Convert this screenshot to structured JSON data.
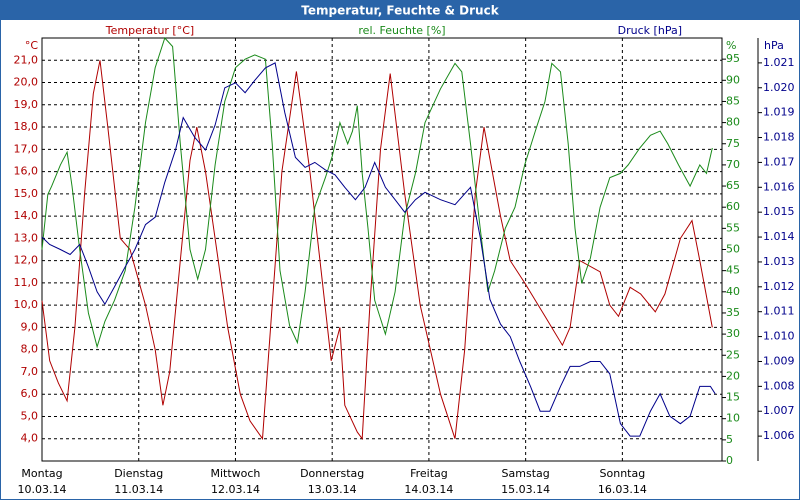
{
  "chart_data": {
    "type": "line",
    "title": "Temperatur, Feuchte & Druck",
    "xlim": [
      0,
      7.03
    ],
    "xticks": [
      {
        "value": 0,
        "label": "Montag"
      },
      {
        "value": 1,
        "label": "Dienstag"
      },
      {
        "value": 2,
        "label": "Mittwoch"
      },
      {
        "value": 3,
        "label": "Donnerstag"
      },
      {
        "value": 4,
        "label": "Freitag"
      },
      {
        "value": 5,
        "label": "Samstag"
      },
      {
        "value": 6,
        "label": "Sonntag"
      }
    ],
    "dates": [
      "10.03.14",
      "11.03.14",
      "12.03.14",
      "13.03.14",
      "14.03.14",
      "15.03.14",
      "16.03.14"
    ],
    "ylabel": "Temperatur [°C]",
    "yunit": "°C",
    "ylim": [
      3,
      22
    ],
    "yticks": [
      {
        "value": 4,
        "label": "4,0"
      },
      {
        "value": 5,
        "label": "5,0"
      },
      {
        "value": 6,
        "label": "6,0"
      },
      {
        "value": 7,
        "label": "7,0"
      },
      {
        "value": 8,
        "label": "8,0"
      },
      {
        "value": 9,
        "label": "9,0"
      },
      {
        "value": 10,
        "label": "10,0"
      },
      {
        "value": 11,
        "label": "11,0"
      },
      {
        "value": 12,
        "label": "12,0"
      },
      {
        "value": 13,
        "label": "13,0"
      },
      {
        "value": 14,
        "label": "14,0"
      },
      {
        "value": 15,
        "label": "15,0"
      },
      {
        "value": 16,
        "label": "16,0"
      },
      {
        "value": 17,
        "label": "17,0"
      },
      {
        "value": 18,
        "label": "18,0"
      },
      {
        "value": 19,
        "label": "19,0"
      },
      {
        "value": 20,
        "label": "20,0"
      },
      {
        "value": 21,
        "label": "21,0"
      }
    ],
    "y2label": "rel. Feuchte [%]",
    "y2unit": "%",
    "y2lim": [
      0,
      100
    ],
    "y2ticks": [
      0,
      5,
      10,
      15,
      20,
      25,
      30,
      35,
      40,
      45,
      50,
      55,
      60,
      65,
      70,
      75,
      80,
      85,
      90,
      95
    ],
    "y3label": "Druck [hPa]",
    "y3unit": "hPa",
    "y3lim": [
      1.005,
      1.022
    ],
    "y3ticks": [
      {
        "value": 1.006,
        "label": "1.006"
      },
      {
        "value": 1.007,
        "label": "1.007"
      },
      {
        "value": 1.008,
        "label": "1.008"
      },
      {
        "value": 1.009,
        "label": "1.009"
      },
      {
        "value": 1.01,
        "label": "1.010"
      },
      {
        "value": 1.011,
        "label": "1.011"
      },
      {
        "value": 1.012,
        "label": "1.012"
      },
      {
        "value": 1.013,
        "label": "1.013"
      },
      {
        "value": 1.014,
        "label": "1.014"
      },
      {
        "value": 1.015,
        "label": "1.015"
      },
      {
        "value": 1.016,
        "label": "1.016"
      },
      {
        "value": 1.017,
        "label": "1.017"
      },
      {
        "value": 1.018,
        "label": "1.018"
      },
      {
        "value": 1.019,
        "label": "1.019"
      },
      {
        "value": 1.02,
        "label": "1.020"
      },
      {
        "value": 1.021,
        "label": "1.021"
      }
    ],
    "grid": true,
    "series": [
      {
        "name": "Temperatur",
        "color": "#b00000",
        "axis": "y",
        "x": [
          0,
          0.08,
          0.17,
          0.26,
          0.34,
          0.44,
          0.53,
          0.6,
          0.68,
          0.81,
          0.91,
          1.07,
          1.17,
          1.25,
          1.32,
          1.43,
          1.53,
          1.6,
          1.69,
          1.79,
          1.92,
          2.05,
          2.15,
          2.28,
          2.38,
          2.48,
          2.63,
          2.77,
          2.9,
          2.99,
          3.08,
          3.13,
          3.26,
          3.31,
          3.39,
          3.5,
          3.6,
          3.75,
          3.91,
          4.12,
          4.27,
          4.37,
          4.48,
          4.57,
          4.74,
          4.84,
          4.99,
          5.2,
          5.38,
          5.46,
          5.56,
          5.77,
          5.87,
          5.96,
          6.08,
          6.19,
          6.34,
          6.44,
          6.6,
          6.72,
          6.8,
          6.93
        ],
        "values": [
          10.2,
          7.5,
          6.5,
          5.7,
          9,
          15,
          19.5,
          21,
          18,
          13,
          12.5,
          10,
          8,
          5.5,
          7,
          12,
          16.5,
          18,
          16,
          13,
          9,
          6,
          4.8,
          4,
          10,
          16,
          20.5,
          16,
          11,
          7.5,
          9,
          5.5,
          4.3,
          4,
          10,
          17,
          20.4,
          15,
          10,
          6,
          4,
          8,
          15,
          18,
          14,
          12,
          11,
          9.5,
          8.2,
          9,
          12,
          11.5,
          10,
          9.5,
          10.8,
          10.5,
          9.7,
          10.5,
          13,
          13.8,
          12,
          9
        ]
      },
      {
        "name": "rel. Feuchte",
        "color": "#1a8a1a",
        "axis": "y2",
        "x": [
          0,
          0.06,
          0.1,
          0.19,
          0.26,
          0.31,
          0.39,
          0.48,
          0.57,
          0.65,
          0.75,
          0.86,
          0.96,
          1.07,
          1.17,
          1.27,
          1.35,
          1.43,
          1.53,
          1.61,
          1.69,
          1.79,
          1.89,
          2,
          2.1,
          2.2,
          2.31,
          2.38,
          2.46,
          2.56,
          2.64,
          2.72,
          2.82,
          2.93,
          3,
          3.08,
          3.16,
          3.21,
          3.26,
          3.31,
          3.37,
          3.44,
          3.55,
          3.65,
          3.75,
          3.86,
          3.96,
          4.12,
          4.27,
          4.34,
          4.43,
          4.53,
          4.61,
          4.68,
          4.79,
          4.89,
          4.99,
          5.1,
          5.2,
          5.27,
          5.36,
          5.44,
          5.51,
          5.58,
          5.67,
          5.77,
          5.87,
          5.98,
          6.06,
          6.18,
          6.29,
          6.39,
          6.47,
          6.58,
          6.7,
          6.8,
          6.87,
          6.93
        ],
        "values": [
          50,
          63,
          65,
          70,
          73,
          65,
          50,
          35,
          27,
          33,
          38,
          45,
          60,
          80,
          93,
          100,
          98,
          75,
          50,
          43,
          50,
          70,
          85,
          93,
          95,
          96,
          95,
          75,
          45,
          32,
          28,
          40,
          60,
          67,
          72,
          80,
          75,
          78,
          84,
          68,
          55,
          38,
          30,
          40,
          58,
          68,
          80,
          88,
          94,
          92,
          75,
          55,
          40,
          45,
          55,
          60,
          70,
          78,
          85,
          94,
          92,
          75,
          55,
          42,
          48,
          60,
          67,
          68,
          70,
          74,
          77,
          78,
          75,
          70,
          65,
          70,
          68,
          74
        ]
      },
      {
        "name": "Druck",
        "color": "#00008b",
        "axis": "y3",
        "x": [
          0,
          0.08,
          0.19,
          0.29,
          0.39,
          0.48,
          0.57,
          0.65,
          0.75,
          0.86,
          0.96,
          1.07,
          1.17,
          1.27,
          1.38,
          1.46,
          1.58,
          1.69,
          1.79,
          1.89,
          2,
          2.1,
          2.2,
          2.31,
          2.41,
          2.51,
          2.62,
          2.72,
          2.82,
          2.93,
          3.03,
          3.13,
          3.24,
          3.34,
          3.44,
          3.55,
          3.65,
          3.75,
          3.86,
          3.96,
          4.12,
          4.27,
          4.43,
          4.53,
          4.63,
          4.74,
          4.84,
          4.94,
          5.05,
          5.15,
          5.25,
          5.36,
          5.46,
          5.56,
          5.67,
          5.77,
          5.87,
          5.98,
          6.08,
          6.18,
          6.29,
          6.39,
          6.49,
          6.6,
          6.7,
          6.8,
          6.91,
          6.96
        ],
        "values": [
          1.014,
          1.0137,
          1.0135,
          1.0133,
          1.0137,
          1.0128,
          1.0118,
          1.0113,
          1.012,
          1.0128,
          1.0135,
          1.0145,
          1.0148,
          1.0162,
          1.0175,
          1.0188,
          1.018,
          1.0175,
          1.0185,
          1.02,
          1.0202,
          1.0198,
          1.0203,
          1.0208,
          1.021,
          1.019,
          1.0172,
          1.0168,
          1.017,
          1.0167,
          1.0165,
          1.016,
          1.0155,
          1.016,
          1.017,
          1.016,
          1.0155,
          1.015,
          1.0155,
          1.0158,
          1.0155,
          1.0153,
          1.016,
          1.014,
          1.0115,
          1.0105,
          1.01,
          1.009,
          1.008,
          1.007,
          1.007,
          1.008,
          1.0088,
          1.0088,
          1.009,
          1.009,
          1.0085,
          1.0065,
          1.006,
          1.006,
          1.007,
          1.0077,
          1.0068,
          1.0065,
          1.0068,
          1.008,
          1.008,
          1.0077
        ]
      }
    ]
  }
}
